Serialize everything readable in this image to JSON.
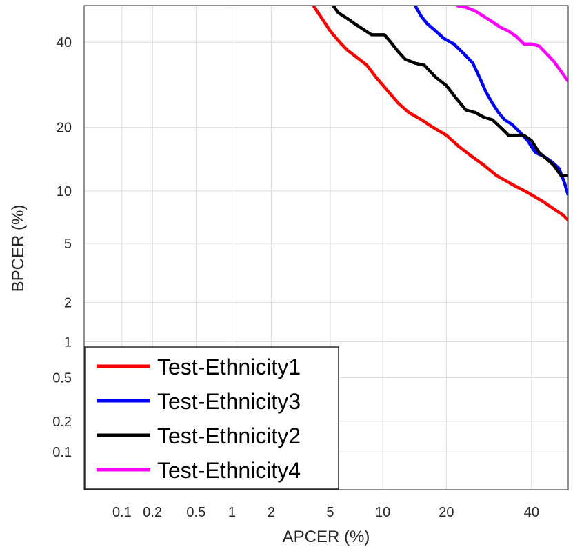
{
  "chart_data": {
    "type": "line",
    "title": "",
    "xlabel": "APCER (%)",
    "ylabel": "BPCER (%)",
    "x_scale": "probit",
    "y_scale": "probit",
    "xlim": [
      0.04,
      50
    ],
    "ylim": [
      0.04,
      50
    ],
    "x_ticks": [
      0.1,
      0.2,
      0.5,
      1,
      2,
      5,
      10,
      20,
      40
    ],
    "x_tick_labels": [
      "0.1",
      "0.2",
      "0.5",
      "1",
      "2",
      "5",
      "10",
      "20",
      "40"
    ],
    "y_ticks": [
      0.1,
      0.2,
      0.5,
      1,
      2,
      5,
      10,
      20,
      40
    ],
    "y_tick_labels": [
      "0.1",
      "0.2",
      "0.5",
      "1",
      "2",
      "5",
      "10",
      "20",
      "40"
    ],
    "grid": true,
    "legend_position": "bottom-left",
    "series": [
      {
        "name": "Test-Ethnicity1",
        "color": "#ff0000",
        "x": [
          3.9,
          4.5,
          5.0,
          5.7,
          6.3,
          7.2,
          8.2,
          9.2,
          10.5,
          12.0,
          13.5,
          15.5,
          17.5,
          20.0,
          22.5,
          25.0,
          28.0,
          31.0,
          35.0,
          39.0,
          43.0,
          46.0,
          48.5,
          50.0
        ],
        "y": [
          50.0,
          46.0,
          43.0,
          40.0,
          38.0,
          36.0,
          34.0,
          31.0,
          28.0,
          25.0,
          23.0,
          21.5,
          20.0,
          18.5,
          16.5,
          15.0,
          13.5,
          12.0,
          10.8,
          9.8,
          8.8,
          8.0,
          7.4,
          6.9
        ]
      },
      {
        "name": "Test-Ethnicity3",
        "color": "#0000ff",
        "x": [
          14.5,
          15.5,
          16.5,
          18.0,
          19.5,
          21.5,
          23.5,
          25.5,
          27.0,
          28.5,
          30.0,
          31.5,
          33.0,
          35.0,
          37.0,
          39.0,
          41.0,
          43.5,
          45.5,
          47.5,
          49.0,
          50.0
        ],
        "y": [
          50.0,
          47.0,
          45.0,
          43.0,
          41.0,
          39.5,
          37.0,
          34.5,
          31.0,
          27.5,
          25.0,
          23.0,
          21.5,
          20.5,
          19.0,
          17.5,
          15.5,
          14.8,
          14.0,
          13.0,
          11.0,
          9.5
        ]
      },
      {
        "name": "Test-Ethnicity2",
        "color": "#000000",
        "x": [
          5.2,
          5.6,
          6.3,
          7.0,
          7.8,
          8.7,
          9.7,
          10.2,
          11.0,
          12.0,
          13.0,
          14.5,
          16.0,
          18.0,
          20.0,
          22.0,
          24.0,
          26.0,
          28.0,
          30.0,
          32.0,
          34.0,
          36.0,
          38.0,
          40.0,
          42.0,
          44.0,
          46.0,
          48.0,
          50.0
        ],
        "y": [
          50.0,
          48.0,
          46.5,
          45.0,
          43.5,
          42.0,
          42.0,
          42.0,
          40.0,
          37.5,
          35.5,
          34.5,
          34.0,
          31.0,
          29.0,
          26.0,
          23.5,
          23.0,
          22.0,
          21.5,
          20.0,
          18.5,
          18.5,
          18.5,
          17.5,
          15.5,
          14.5,
          13.5,
          12.0,
          12.0
        ]
      },
      {
        "name": "Test-Ethnicity4",
        "color": "#ff00ff",
        "x": [
          22.0,
          24.0,
          26.0,
          28.0,
          30.0,
          32.0,
          34.0,
          36.0,
          38.0,
          40.0,
          42.0,
          44.0,
          46.0,
          48.0,
          50.0
        ],
        "y": [
          50.0,
          49.5,
          48.5,
          47.0,
          45.5,
          44.0,
          43.0,
          41.5,
          39.5,
          39.5,
          39.0,
          37.0,
          35.0,
          32.5,
          30.0
        ]
      }
    ]
  }
}
